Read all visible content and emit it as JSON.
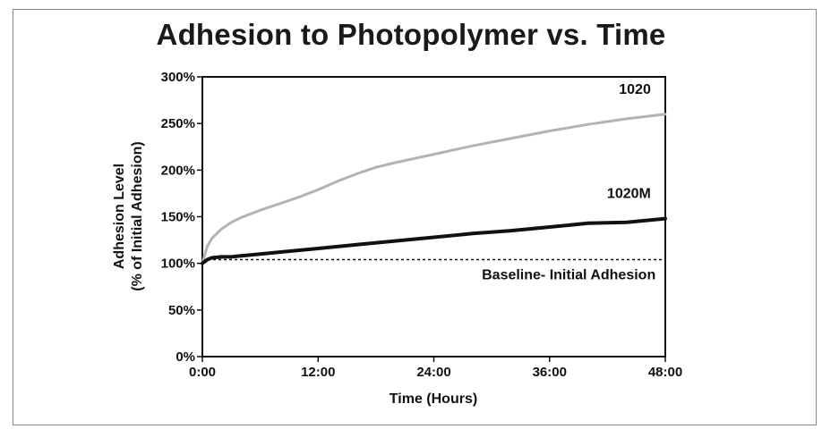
{
  "chart_data": {
    "type": "line",
    "title": "Adhesion to Photopolymer vs. Time",
    "xlabel": "Time (Hours)",
    "ylabel_line1": "Adhesion Level",
    "ylabel_line2": "(% of Initial Adhesion)",
    "x_unit": "hours",
    "xlim": [
      0,
      48
    ],
    "ylim": [
      0,
      300
    ],
    "x_ticks": [
      {
        "value": 0,
        "label": "0:00"
      },
      {
        "value": 12,
        "label": "12:00"
      },
      {
        "value": 24,
        "label": "24:00"
      },
      {
        "value": 36,
        "label": "36:00"
      },
      {
        "value": 48,
        "label": "48:00"
      }
    ],
    "y_ticks": [
      {
        "value": 0,
        "label": "0%"
      },
      {
        "value": 50,
        "label": "50%"
      },
      {
        "value": 100,
        "label": "100%"
      },
      {
        "value": 150,
        "label": "150%"
      },
      {
        "value": 200,
        "label": "200%"
      },
      {
        "value": 250,
        "label": "250%"
      },
      {
        "value": 300,
        "label": "300%"
      }
    ],
    "grid": false,
    "series": [
      {
        "name": "1020",
        "color": "#b3b3b3",
        "x": [
          0,
          0.5,
          1,
          2,
          3,
          4,
          6,
          8,
          10,
          12,
          14,
          16,
          18,
          20,
          24,
          28,
          32,
          36,
          40,
          44,
          48
        ],
        "y": [
          100,
          118,
          127,
          137,
          144,
          149,
          157,
          164,
          171,
          179,
          188,
          196,
          203,
          208,
          217,
          226,
          234,
          242,
          249,
          255,
          260
        ]
      },
      {
        "name": "1020M",
        "color": "#111111",
        "x": [
          0,
          0.5,
          1,
          2,
          3,
          4,
          6,
          8,
          12,
          16,
          20,
          24,
          28,
          32,
          36,
          40,
          44,
          48
        ],
        "y": [
          100,
          104,
          106,
          107,
          107,
          108,
          110,
          112,
          116,
          120,
          124,
          128,
          132,
          135,
          139,
          143,
          144,
          148
        ]
      }
    ],
    "baseline": {
      "y": 104,
      "label": "Baseline- Initial Adhesion",
      "style": "dashed"
    }
  }
}
